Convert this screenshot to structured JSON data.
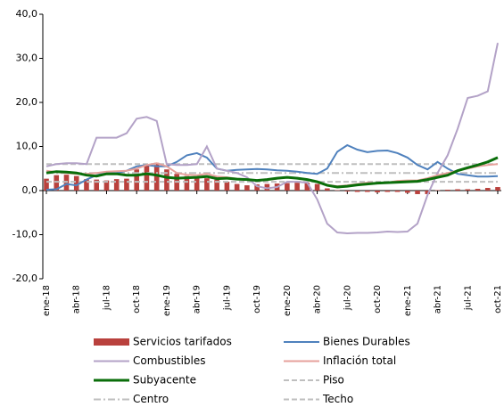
{
  "chart_data": {
    "type": "combo",
    "categories": [
      "ene-18",
      null,
      null,
      "abr-18",
      null,
      null,
      "jul-18",
      null,
      null,
      "oct-18",
      null,
      null,
      "ene-19",
      null,
      null,
      "abr-19",
      null,
      null,
      "jul-19",
      null,
      null,
      "oct-19",
      null,
      null,
      "ene-20",
      null,
      null,
      "abr-20",
      null,
      null,
      "jul-20",
      null,
      null,
      "oct-20",
      null,
      null,
      "ene-21",
      null,
      null,
      "abr-21",
      null,
      null,
      "jul-21",
      null,
      null,
      "oct-21"
    ],
    "ylim": [
      -20,
      40
    ],
    "yticks": [
      {
        "value": -20,
        "label": "-20,0"
      },
      {
        "value": -10,
        "label": "-10,0"
      },
      {
        "value": 0,
        "label": "0,0"
      },
      {
        "value": 10,
        "label": "10,0"
      },
      {
        "value": 20,
        "label": "20,0"
      },
      {
        "value": 30,
        "label": "30,0"
      },
      {
        "value": 40,
        "label": "40,0"
      }
    ],
    "grid": false,
    "series": [
      {
        "name": "Servicios tarifados",
        "color": "#b9413d",
        "style": "bar",
        "values": [
          2.7,
          3.5,
          3.6,
          3.3,
          2.6,
          2.5,
          2.3,
          2.6,
          2.7,
          4.8,
          5.8,
          6.3,
          4.8,
          3.8,
          3.3,
          3.2,
          2.8,
          2.5,
          2,
          1.5,
          1.2,
          1.4,
          1.5,
          1.6,
          1.7,
          1.8,
          1.8,
          1.5,
          0.5,
          0.1,
          -0.2,
          -0.3,
          -0.3,
          -0.4,
          -0.3,
          -0.3,
          -0.5,
          -0.8,
          -0.8,
          0.1,
          0.2,
          0.3,
          0.3,
          0.4,
          0.6,
          0.8
        ]
      },
      {
        "name": "Bienes Durables",
        "color": "#4f81bd",
        "style": "solid",
        "values": [
          0.2,
          0.3,
          1.5,
          1.2,
          2.5,
          3.5,
          4,
          4,
          4.5,
          5.5,
          5.8,
          5.5,
          5.5,
          6.5,
          8,
          8.5,
          7.5,
          5,
          4.5,
          4.7,
          4.8,
          4.9,
          4.8,
          4.6,
          4.5,
          4.3,
          4,
          3.8,
          5,
          8.8,
          10.3,
          9.3,
          8.7,
          9,
          9.1,
          8.5,
          7.5,
          5.8,
          4.8,
          6.5,
          5,
          3.8,
          3.5,
          3.2,
          3.2,
          3.3
        ]
      },
      {
        "name": "Combustibles",
        "color": "#b3a2c7",
        "style": "solid",
        "values": [
          5.5,
          6,
          6.2,
          6.2,
          6,
          12,
          12,
          12,
          13,
          16.3,
          16.7,
          15.8,
          6,
          5.8,
          5.8,
          6,
          10,
          5,
          4.5,
          4,
          3,
          1,
          0.5,
          0.8,
          2,
          2,
          1.8,
          -2,
          -7.5,
          -9.5,
          -9.7,
          -9.6,
          -9.6,
          -9.5,
          -9.3,
          -9.4,
          -9.3,
          -7.5,
          -1,
          4,
          8,
          14,
          21,
          21.5,
          22.5,
          33.5
        ]
      },
      {
        "name": "Inflación total",
        "color": "#e6a19b",
        "style": "solid",
        "values": [
          4.5,
          4.2,
          4,
          3.8,
          3.8,
          4,
          4.3,
          4.4,
          4.5,
          5,
          5.8,
          6.2,
          5.5,
          4,
          3.6,
          3.5,
          3.8,
          3.2,
          3,
          2.7,
          2.5,
          2.3,
          2.4,
          2.7,
          3,
          2.9,
          2.5,
          2,
          1.3,
          1,
          1.2,
          1.5,
          1.8,
          1.7,
          1.8,
          2.2,
          2.3,
          2.3,
          2.8,
          3.5,
          4,
          4.5,
          5,
          5.5,
          5.8,
          6
        ]
      },
      {
        "name": "Subyacente",
        "color": "#0a6e0a",
        "style": "bold",
        "values": [
          4,
          4.3,
          4.2,
          4,
          3.5,
          3.3,
          3.8,
          3.8,
          3.5,
          3.5,
          3.8,
          3.5,
          3,
          2.8,
          2.9,
          3,
          3.2,
          2.7,
          2.8,
          2.6,
          2.5,
          2.3,
          2.5,
          2.8,
          3,
          2.8,
          2.5,
          2,
          1.2,
          0.8,
          1,
          1.3,
          1.5,
          1.7,
          1.8,
          1.9,
          2,
          2.1,
          2.5,
          3,
          3.5,
          4.5,
          5.2,
          5.8,
          6.5,
          7.5
        ]
      },
      {
        "name": "Piso",
        "color": "#bfbfbf",
        "style": "dashed",
        "values": [
          2,
          2,
          2,
          2,
          2,
          2,
          2,
          2,
          2,
          2,
          2,
          2,
          2,
          2,
          2,
          2,
          2,
          2,
          2,
          2,
          2,
          2,
          2,
          2,
          2,
          2,
          2,
          2,
          2,
          2,
          2,
          2,
          2,
          2,
          2,
          2,
          2,
          2,
          2,
          2,
          2,
          2,
          2,
          2,
          2,
          2
        ]
      },
      {
        "name": "Centro",
        "color": "#bfbfbf",
        "style": "dashdot",
        "values": [
          4,
          4,
          4,
          4,
          4,
          4,
          4,
          4,
          4,
          4,
          4,
          4,
          4,
          4,
          4,
          4,
          4,
          4,
          4,
          4,
          4,
          4,
          4,
          4,
          4,
          4,
          4,
          4,
          4,
          4,
          4,
          4,
          4,
          4,
          4,
          4,
          4,
          4,
          4,
          4,
          4,
          4,
          4,
          4,
          4,
          4
        ]
      },
      {
        "name": "Techo",
        "color": "#bfbfbf",
        "style": "dashed",
        "values": [
          6,
          6,
          6,
          6,
          6,
          6,
          6,
          6,
          6,
          6,
          6,
          6,
          6,
          6,
          6,
          6,
          6,
          6,
          6,
          6,
          6,
          6,
          6,
          6,
          6,
          6,
          6,
          6,
          6,
          6,
          6,
          6,
          6,
          6,
          6,
          6,
          6,
          6,
          6,
          6,
          6,
          6,
          6,
          6,
          6,
          6
        ]
      }
    ]
  }
}
